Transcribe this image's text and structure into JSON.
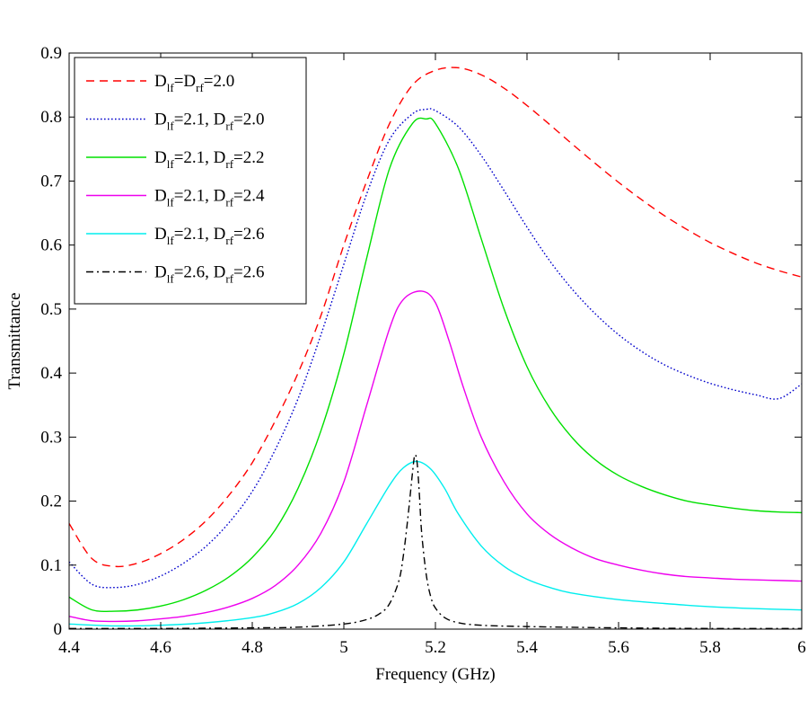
{
  "chart_data": {
    "type": "line",
    "title": "",
    "xlabel": "Frequency (GHz)",
    "ylabel": "Transmittance",
    "xlim": [
      4.4,
      6.0
    ],
    "ylim": [
      0,
      0.9
    ],
    "xticks": [
      4.4,
      4.6,
      4.8,
      5.0,
      5.2,
      5.4,
      5.6,
      5.8,
      6.0
    ],
    "xtick_labels": [
      "4.4",
      "4.6",
      "4.8",
      "5",
      "5.2",
      "5.4",
      "5.6",
      "5.8",
      "6"
    ],
    "yticks": [
      0,
      0.1,
      0.2,
      0.3,
      0.4,
      0.5,
      0.6,
      0.7,
      0.8,
      0.9
    ],
    "ytick_labels": [
      "0",
      "0.1",
      "0.2",
      "0.3",
      "0.4",
      "0.5",
      "0.6",
      "0.7",
      "0.8",
      "0.9"
    ],
    "legend_position": "top-left",
    "series": [
      {
        "name": "Dlf=Drf=2.0",
        "label_parts": [
          [
            "D",
            ""
          ],
          [
            "lf",
            "sub"
          ],
          [
            "=D",
            ""
          ],
          [
            "rf",
            "sub"
          ],
          [
            "=2.0",
            ""
          ]
        ],
        "color": "#ff0000",
        "dash": "dashed",
        "x": [
          4.4,
          4.45,
          4.5,
          4.55,
          4.6,
          4.65,
          4.7,
          4.75,
          4.8,
          4.85,
          4.9,
          4.95,
          5.0,
          5.05,
          5.1,
          5.15,
          5.2,
          5.25,
          5.3,
          5.35,
          5.4,
          5.45,
          5.5,
          5.55,
          5.6,
          5.65,
          5.7,
          5.75,
          5.8,
          5.85,
          5.9,
          5.95,
          6.0
        ],
        "y": [
          0.165,
          0.11,
          0.098,
          0.103,
          0.118,
          0.14,
          0.17,
          0.21,
          0.26,
          0.325,
          0.4,
          0.49,
          0.6,
          0.7,
          0.79,
          0.85,
          0.873,
          0.877,
          0.866,
          0.845,
          0.818,
          0.788,
          0.757,
          0.727,
          0.698,
          0.671,
          0.646,
          0.624,
          0.604,
          0.587,
          0.572,
          0.56,
          0.55
        ]
      },
      {
        "name": "Dlf=2.1, Drf=2.0",
        "label_parts": [
          [
            "D",
            ""
          ],
          [
            "lf",
            "sub"
          ],
          [
            "=2.1, D",
            ""
          ],
          [
            "rf",
            "sub"
          ],
          [
            "=2.0",
            ""
          ]
        ],
        "color": "#0000cc",
        "dash": "dotted",
        "x": [
          4.4,
          4.45,
          4.5,
          4.55,
          4.6,
          4.65,
          4.7,
          4.75,
          4.8,
          4.85,
          4.9,
          4.95,
          5.0,
          5.05,
          5.1,
          5.15,
          5.18,
          5.2,
          5.25,
          5.3,
          5.35,
          5.4,
          5.45,
          5.5,
          5.55,
          5.6,
          5.65,
          5.7,
          5.75,
          5.8,
          5.85,
          5.9,
          5.95,
          6.0
        ],
        "y": [
          0.105,
          0.07,
          0.065,
          0.07,
          0.083,
          0.103,
          0.13,
          0.167,
          0.215,
          0.28,
          0.36,
          0.46,
          0.57,
          0.68,
          0.765,
          0.805,
          0.812,
          0.81,
          0.785,
          0.74,
          0.685,
          0.628,
          0.575,
          0.53,
          0.492,
          0.46,
          0.434,
          0.413,
          0.397,
          0.384,
          0.374,
          0.366,
          0.36,
          0.383
        ]
      },
      {
        "name": "Dlf=2.1, Drf=2.2",
        "label_parts": [
          [
            "D",
            ""
          ],
          [
            "lf",
            "sub"
          ],
          [
            "=2.1, D",
            ""
          ],
          [
            "rf",
            "sub"
          ],
          [
            "=2.2",
            ""
          ]
        ],
        "color": "#00e000",
        "dash": "solid",
        "x": [
          4.4,
          4.45,
          4.5,
          4.55,
          4.6,
          4.65,
          4.7,
          4.75,
          4.8,
          4.85,
          4.9,
          4.95,
          5.0,
          5.05,
          5.1,
          5.15,
          5.18,
          5.2,
          5.25,
          5.3,
          5.35,
          5.4,
          5.45,
          5.5,
          5.55,
          5.6,
          5.65,
          5.7,
          5.75,
          5.8,
          5.85,
          5.9,
          5.95,
          6.0
        ],
        "y": [
          0.05,
          0.03,
          0.028,
          0.03,
          0.036,
          0.046,
          0.061,
          0.082,
          0.112,
          0.155,
          0.22,
          0.31,
          0.43,
          0.58,
          0.72,
          0.79,
          0.797,
          0.79,
          0.72,
          0.61,
          0.5,
          0.41,
          0.345,
          0.298,
          0.264,
          0.24,
          0.223,
          0.21,
          0.2,
          0.194,
          0.189,
          0.185,
          0.183,
          0.182
        ]
      },
      {
        "name": "Dlf=2.1, Drf=2.4",
        "label_parts": [
          [
            "D",
            ""
          ],
          [
            "lf",
            "sub"
          ],
          [
            "=2.1, D",
            ""
          ],
          [
            "rf",
            "sub"
          ],
          [
            "=2.4",
            ""
          ]
        ],
        "color": "#ee00ee",
        "dash": "solid",
        "x": [
          4.4,
          4.45,
          4.5,
          4.55,
          4.6,
          4.65,
          4.7,
          4.75,
          4.8,
          4.85,
          4.9,
          4.95,
          5.0,
          5.05,
          5.1,
          5.13,
          5.17,
          5.2,
          5.23,
          5.26,
          5.3,
          5.35,
          5.4,
          5.45,
          5.5,
          5.55,
          5.6,
          5.65,
          5.7,
          5.75,
          5.8,
          5.85,
          5.9,
          5.95,
          6.0
        ],
        "y": [
          0.02,
          0.013,
          0.012,
          0.013,
          0.016,
          0.02,
          0.026,
          0.035,
          0.048,
          0.068,
          0.1,
          0.15,
          0.23,
          0.35,
          0.47,
          0.515,
          0.528,
          0.51,
          0.45,
          0.38,
          0.3,
          0.23,
          0.18,
          0.148,
          0.126,
          0.11,
          0.1,
          0.092,
          0.086,
          0.082,
          0.08,
          0.078,
          0.077,
          0.076,
          0.075
        ]
      },
      {
        "name": "Dlf=2.1, Drf=2.6",
        "label_parts": [
          [
            "D",
            ""
          ],
          [
            "lf",
            "sub"
          ],
          [
            "=2.1, D",
            ""
          ],
          [
            "rf",
            "sub"
          ],
          [
            "=2.6",
            ""
          ]
        ],
        "color": "#00eeee",
        "dash": "solid",
        "x": [
          4.4,
          4.5,
          4.6,
          4.7,
          4.8,
          4.85,
          4.9,
          4.95,
          5.0,
          5.05,
          5.1,
          5.13,
          5.16,
          5.19,
          5.22,
          5.25,
          5.3,
          5.35,
          5.4,
          5.45,
          5.5,
          5.6,
          5.7,
          5.8,
          5.9,
          6.0
        ],
        "y": [
          0.008,
          0.005,
          0.006,
          0.01,
          0.018,
          0.026,
          0.04,
          0.065,
          0.105,
          0.165,
          0.225,
          0.252,
          0.262,
          0.25,
          0.22,
          0.18,
          0.13,
          0.098,
          0.078,
          0.065,
          0.056,
          0.046,
          0.04,
          0.035,
          0.032,
          0.03
        ]
      },
      {
        "name": "Dlf=2.6, Drf=2.6",
        "label_parts": [
          [
            "D",
            ""
          ],
          [
            "lf",
            "sub"
          ],
          [
            "=2.6, D",
            ""
          ],
          [
            "rf",
            "sub"
          ],
          [
            "=2.6",
            ""
          ]
        ],
        "color": "#000000",
        "dash": "dashdot",
        "x": [
          4.4,
          4.6,
          4.8,
          4.9,
          5.0,
          5.05,
          5.08,
          5.1,
          5.12,
          5.13,
          5.14,
          5.15,
          5.155,
          5.16,
          5.165,
          5.17,
          5.18,
          5.19,
          5.2,
          5.22,
          5.25,
          5.3,
          5.4,
          5.6,
          5.8,
          6.0
        ],
        "y": [
          0.001,
          0.001,
          0.002,
          0.003,
          0.008,
          0.015,
          0.025,
          0.04,
          0.075,
          0.115,
          0.175,
          0.245,
          0.272,
          0.26,
          0.21,
          0.15,
          0.085,
          0.05,
          0.033,
          0.018,
          0.01,
          0.006,
          0.004,
          0.002,
          0.001,
          0.001
        ]
      }
    ]
  }
}
